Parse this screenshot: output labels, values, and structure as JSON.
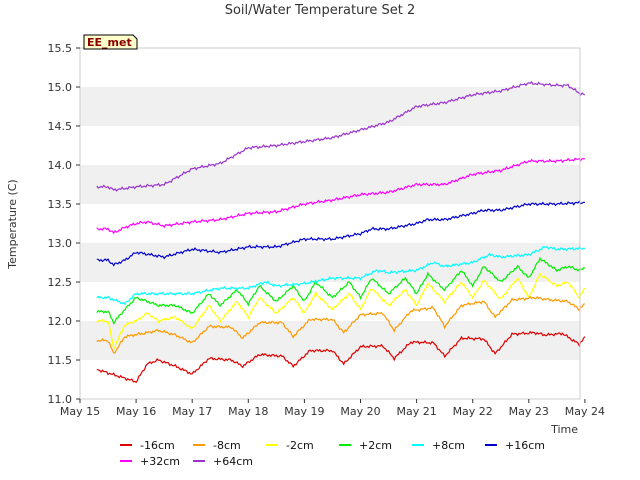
{
  "chart_data": {
    "type": "line",
    "title": "Soil/Water Temperature Set 2",
    "xlabel": "Time",
    "ylabel": "Temperature (C)",
    "site_label": "EE_met",
    "x_ticks": [
      "May 15",
      "May 16",
      "May 17",
      "May 18",
      "May 19",
      "May 20",
      "May 21",
      "May 22",
      "May 23",
      "May 24"
    ],
    "x_range_days": [
      0,
      9
    ],
    "ylim": [
      11.0,
      15.5
    ],
    "y_ticks": [
      "11.0",
      "11.5",
      "12.0",
      "12.5",
      "13.0",
      "13.5",
      "14.0",
      "14.5",
      "15.0",
      "15.5"
    ],
    "grid": "alternating horizontal bands",
    "legend_position": "bottom",
    "series": [
      {
        "name": "-16cm",
        "color": "#dd0000",
        "x": [
          0.3,
          1.0,
          1.2,
          1.4,
          1.7,
          2.0,
          2.3,
          2.7,
          2.9,
          3.2,
          3.6,
          3.8,
          4.1,
          4.5,
          4.7,
          5.0,
          5.4,
          5.6,
          5.9,
          6.3,
          6.5,
          6.8,
          7.2,
          7.4,
          7.7,
          8.1,
          8.3,
          8.6,
          8.9,
          9.0
        ],
        "values": [
          11.38,
          11.22,
          11.45,
          11.5,
          11.42,
          11.32,
          11.52,
          11.5,
          11.42,
          11.57,
          11.55,
          11.42,
          11.62,
          11.62,
          11.45,
          11.67,
          11.68,
          11.52,
          11.73,
          11.72,
          11.55,
          11.78,
          11.77,
          11.58,
          11.83,
          11.85,
          11.82,
          11.84,
          11.7,
          11.8
        ]
      },
      {
        "name": "-8cm",
        "color": "#ff9900",
        "x": [
          0.3,
          0.5,
          0.6,
          0.8,
          1.2,
          1.4,
          1.7,
          2.0,
          2.3,
          2.7,
          2.9,
          3.2,
          3.6,
          3.8,
          4.1,
          4.5,
          4.7,
          5.0,
          5.4,
          5.6,
          5.9,
          6.3,
          6.5,
          6.8,
          7.2,
          7.4,
          7.7,
          8.1,
          8.4,
          8.7,
          8.9,
          9.0
        ],
        "values": [
          11.75,
          11.75,
          11.58,
          11.8,
          11.85,
          11.88,
          11.82,
          11.72,
          11.93,
          11.92,
          11.78,
          11.98,
          11.98,
          11.8,
          12.02,
          12.02,
          11.85,
          12.08,
          12.1,
          11.88,
          12.13,
          12.17,
          11.93,
          12.2,
          12.25,
          12.05,
          12.27,
          12.3,
          12.27,
          12.25,
          12.15,
          12.22
        ]
      },
      {
        "name": "-2cm",
        "color": "#ffff00",
        "x": [
          0.3,
          0.5,
          0.6,
          0.8,
          1.0,
          1.2,
          1.4,
          1.7,
          2.0,
          2.3,
          2.5,
          2.8,
          3.0,
          3.2,
          3.5,
          3.8,
          4.0,
          4.2,
          4.5,
          4.8,
          5.0,
          5.2,
          5.5,
          5.8,
          6.0,
          6.2,
          6.5,
          6.8,
          7.0,
          7.2,
          7.5,
          7.8,
          8.0,
          8.2,
          8.5,
          8.7,
          8.9,
          9.0
        ],
        "values": [
          12.0,
          12.0,
          11.65,
          11.95,
          12.0,
          12.1,
          12.0,
          12.05,
          11.9,
          12.2,
          12.0,
          12.25,
          12.05,
          12.3,
          12.1,
          12.3,
          12.1,
          12.35,
          12.15,
          12.35,
          12.15,
          12.42,
          12.2,
          12.4,
          12.2,
          12.48,
          12.25,
          12.5,
          12.3,
          12.52,
          12.28,
          12.55,
          12.3,
          12.6,
          12.45,
          12.5,
          12.3,
          12.42
        ]
      },
      {
        "name": "+2cm",
        "color": "#00ee00",
        "x": [
          0.3,
          0.5,
          0.6,
          0.8,
          1.0,
          1.2,
          1.4,
          1.7,
          2.0,
          2.3,
          2.5,
          2.8,
          3.0,
          3.2,
          3.5,
          3.8,
          4.0,
          4.2,
          4.5,
          4.8,
          5.0,
          5.2,
          5.5,
          5.8,
          6.0,
          6.2,
          6.5,
          6.8,
          7.0,
          7.2,
          7.5,
          7.8,
          8.0,
          8.2,
          8.5,
          8.7,
          8.9,
          9.0
        ],
        "values": [
          12.12,
          12.12,
          11.98,
          12.15,
          12.3,
          12.25,
          12.2,
          12.2,
          12.1,
          12.35,
          12.2,
          12.4,
          12.22,
          12.45,
          12.25,
          12.45,
          12.25,
          12.5,
          12.3,
          12.5,
          12.3,
          12.55,
          12.35,
          12.55,
          12.35,
          12.6,
          12.4,
          12.65,
          12.45,
          12.7,
          12.5,
          12.7,
          12.55,
          12.8,
          12.65,
          12.7,
          12.65,
          12.68
        ]
      },
      {
        "name": "+8cm",
        "color": "#00ffff",
        "x": [
          0.3,
          0.5,
          0.8,
          1.0,
          1.5,
          2.0,
          2.5,
          3.0,
          3.3,
          3.5,
          4.0,
          4.5,
          5.0,
          5.3,
          5.5,
          6.0,
          6.3,
          6.5,
          7.0,
          7.3,
          7.5,
          8.0,
          8.3,
          8.5,
          9.0
        ],
        "values": [
          12.3,
          12.3,
          12.22,
          12.35,
          12.35,
          12.35,
          12.42,
          12.42,
          12.5,
          12.45,
          12.48,
          12.55,
          12.55,
          12.65,
          12.62,
          12.65,
          12.75,
          12.7,
          12.75,
          12.85,
          12.82,
          12.85,
          12.95,
          12.92,
          12.93
        ]
      },
      {
        "name": "+16cm",
        "color": "#0000cc",
        "x": [
          0.3,
          0.5,
          0.6,
          0.8,
          1.0,
          1.5,
          2.0,
          2.5,
          3.0,
          3.5,
          4.0,
          4.2,
          4.5,
          5.0,
          5.2,
          5.5,
          6.0,
          6.2,
          6.5,
          7.0,
          7.2,
          7.5,
          8.0,
          8.2,
          8.5,
          9.0
        ],
        "values": [
          12.78,
          12.78,
          12.72,
          12.78,
          12.88,
          12.82,
          12.92,
          12.88,
          12.95,
          12.95,
          13.05,
          13.05,
          13.05,
          13.12,
          13.18,
          13.18,
          13.25,
          13.3,
          13.3,
          13.38,
          13.42,
          13.42,
          13.5,
          13.5,
          13.5,
          13.52
        ]
      },
      {
        "name": "+32cm",
        "color": "#ff00ff",
        "x": [
          0.3,
          0.5,
          0.6,
          0.8,
          1.0,
          1.2,
          1.5,
          2.0,
          2.5,
          3.0,
          3.5,
          4.0,
          4.5,
          5.0,
          5.5,
          6.0,
          6.5,
          7.0,
          7.5,
          8.0,
          8.5,
          9.0
        ],
        "values": [
          13.18,
          13.18,
          13.13,
          13.2,
          13.25,
          13.27,
          13.22,
          13.27,
          13.3,
          13.38,
          13.4,
          13.5,
          13.55,
          13.62,
          13.65,
          13.75,
          13.75,
          13.88,
          13.93,
          14.05,
          14.05,
          14.08
        ]
      },
      {
        "name": "+64cm",
        "color": "#9933cc",
        "x": [
          0.3,
          0.5,
          0.6,
          1.0,
          1.5,
          2.0,
          2.5,
          3.0,
          3.5,
          4.0,
          4.5,
          5.0,
          5.5,
          6.0,
          6.5,
          7.0,
          7.5,
          8.0,
          8.5,
          8.7,
          8.9,
          9.0
        ],
        "values": [
          13.72,
          13.72,
          13.68,
          13.72,
          13.75,
          13.95,
          14.02,
          14.22,
          14.25,
          14.3,
          14.35,
          14.45,
          14.55,
          14.75,
          14.8,
          14.9,
          14.95,
          15.05,
          15.02,
          15.02,
          14.92,
          14.9
        ]
      }
    ]
  }
}
